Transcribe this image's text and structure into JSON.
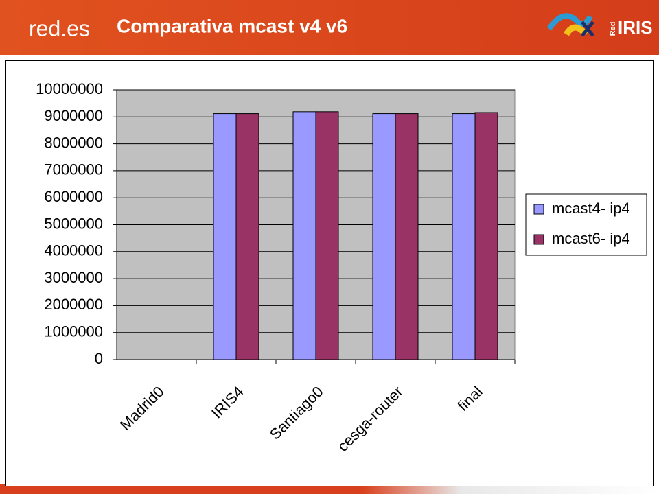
{
  "logos": {
    "left": "red.es",
    "right_small": "Red",
    "right": "IRIS"
  },
  "chart_data": {
    "type": "bar",
    "title": "Comparativa mcast v4 v6",
    "categories": [
      "Madrid0",
      "IRIS4",
      "Santiago0",
      "cesga-router",
      "final"
    ],
    "series": [
      {
        "name": "mcast4- ip4",
        "color": "#9999ff",
        "values": [
          0,
          9120000,
          9190000,
          9120000,
          9120000
        ]
      },
      {
        "name": "mcast6- ip4",
        "color": "#993366",
        "values": [
          0,
          9120000,
          9190000,
          9120000,
          9160000
        ]
      }
    ],
    "ylim": [
      0,
      10000000
    ],
    "yticks": [
      0,
      1000000,
      2000000,
      3000000,
      4000000,
      5000000,
      6000000,
      7000000,
      8000000,
      9000000,
      10000000
    ],
    "grid": true,
    "legend": "right",
    "plot_background": "#c0c0c0"
  }
}
